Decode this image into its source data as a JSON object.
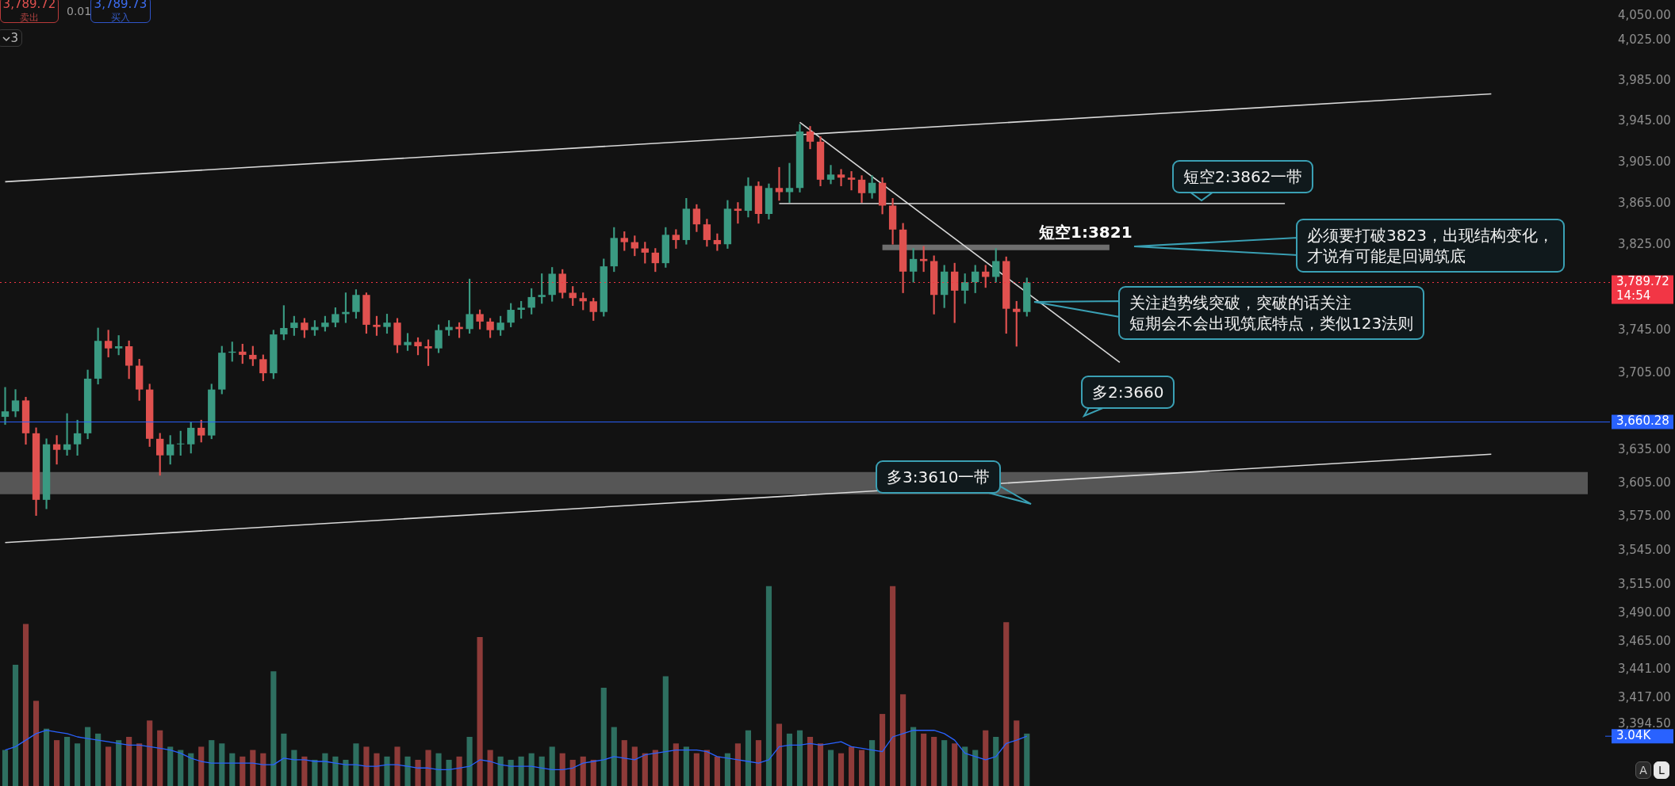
{
  "chart_data": {
    "type": "candlestick",
    "categories": [
      null,
      null,
      null,
      null,
      null,
      null,
      null,
      null,
      null,
      null,
      null,
      null,
      null,
      null,
      null,
      null,
      null,
      null,
      null,
      null,
      null,
      null,
      null,
      null,
      null,
      null,
      null,
      null,
      null,
      null,
      null,
      null,
      null,
      null,
      null,
      null,
      null,
      null,
      null,
      null,
      null,
      null,
      null,
      null,
      null,
      null,
      null,
      null,
      null,
      null,
      null,
      null,
      null,
      null,
      null,
      null,
      null,
      null,
      null,
      null,
      null,
      null,
      null,
      null,
      null,
      null,
      null,
      null,
      null,
      null,
      null,
      null,
      null,
      null,
      null,
      null,
      null,
      null,
      null,
      null,
      null,
      null,
      null,
      null,
      null,
      null,
      null,
      null,
      null,
      null,
      null,
      null,
      null,
      null,
      null,
      null,
      null,
      null,
      null,
      null,
      null,
      null,
      null,
      null,
      null,
      null,
      null,
      null,
      null,
      null,
      null,
      null,
      null,
      null,
      null,
      null,
      null,
      null,
      null,
      null,
      null,
      null,
      null,
      null,
      null,
      null,
      null,
      null,
      null,
      null,
      null,
      null,
      null,
      null,
      null,
      null,
      null,
      null,
      null,
      null,
      null,
      null,
      null,
      null,
      null,
      null,
      null,
      null,
      null,
      null,
      null,
      null,
      null,
      null,
      null,
      null
    ],
    "ohlc": [
      [
        3665,
        3692,
        3658,
        3670
      ],
      [
        3670,
        3690,
        3665,
        3680
      ],
      [
        3680,
        3683,
        3640,
        3650
      ],
      [
        3650,
        3655,
        3576,
        3590
      ],
      [
        3590,
        3645,
        3582,
        3640
      ],
      [
        3640,
        3648,
        3622,
        3635
      ],
      [
        3635,
        3668,
        3630,
        3640
      ],
      [
        3640,
        3662,
        3630,
        3650
      ],
      [
        3650,
        3708,
        3645,
        3700
      ],
      [
        3700,
        3747,
        3695,
        3735
      ],
      [
        3735,
        3745,
        3720,
        3728
      ],
      [
        3728,
        3740,
        3722,
        3730
      ],
      [
        3730,
        3735,
        3700,
        3712
      ],
      [
        3712,
        3718,
        3680,
        3690
      ],
      [
        3690,
        3695,
        3638,
        3645
      ],
      [
        3645,
        3650,
        3612,
        3630
      ],
      [
        3630,
        3648,
        3622,
        3640
      ],
      [
        3640,
        3652,
        3630,
        3640
      ],
      [
        3640,
        3660,
        3632,
        3655
      ],
      [
        3655,
        3662,
        3642,
        3648
      ],
      [
        3648,
        3695,
        3645,
        3690
      ],
      [
        3690,
        3730,
        3686,
        3724
      ],
      [
        3724,
        3734,
        3716,
        3725
      ],
      [
        3725,
        3732,
        3714,
        3722
      ],
      [
        3722,
        3730,
        3712,
        3718
      ],
      [
        3718,
        3722,
        3698,
        3705
      ],
      [
        3705,
        3745,
        3700,
        3741
      ],
      [
        3741,
        3768,
        3736,
        3747
      ],
      [
        3747,
        3758,
        3740,
        3752
      ],
      [
        3752,
        3756,
        3738,
        3745
      ],
      [
        3745,
        3754,
        3740,
        3748
      ],
      [
        3748,
        3758,
        3744,
        3752
      ],
      [
        3752,
        3766,
        3748,
        3760
      ],
      [
        3760,
        3780,
        3752,
        3762
      ],
      [
        3762,
        3783,
        3756,
        3778
      ],
      [
        3778,
        3780,
        3742,
        3750
      ],
      [
        3750,
        3758,
        3740,
        3748
      ],
      [
        3748,
        3760,
        3742,
        3752
      ],
      [
        3752,
        3756,
        3724,
        3731
      ],
      [
        3731,
        3742,
        3726,
        3734
      ],
      [
        3734,
        3738,
        3722,
        3730
      ],
      [
        3730,
        3736,
        3712,
        3728
      ],
      [
        3728,
        3750,
        3724,
        3745
      ],
      [
        3745,
        3754,
        3740,
        3748
      ],
      [
        3748,
        3752,
        3738,
        3746
      ],
      [
        3746,
        3793,
        3742,
        3760
      ],
      [
        3760,
        3764,
        3746,
        3753
      ],
      [
        3753,
        3756,
        3738,
        3745
      ],
      [
        3745,
        3758,
        3740,
        3752
      ],
      [
        3752,
        3770,
        3748,
        3764
      ],
      [
        3764,
        3772,
        3756,
        3766
      ],
      [
        3766,
        3784,
        3760,
        3776
      ],
      [
        3776,
        3798,
        3770,
        3778
      ],
      [
        3778,
        3804,
        3772,
        3798
      ],
      [
        3798,
        3802,
        3775,
        3780
      ],
      [
        3780,
        3786,
        3768,
        3775
      ],
      [
        3775,
        3780,
        3764,
        3772
      ],
      [
        3772,
        3775,
        3754,
        3762
      ],
      [
        3762,
        3812,
        3758,
        3805
      ],
      [
        3805,
        3842,
        3800,
        3832
      ],
      [
        3832,
        3838,
        3820,
        3828
      ],
      [
        3828,
        3834,
        3815,
        3822
      ],
      [
        3822,
        3828,
        3808,
        3818
      ],
      [
        3818,
        3822,
        3800,
        3808
      ],
      [
        3808,
        3842,
        3804,
        3835
      ],
      [
        3835,
        3840,
        3822,
        3830
      ],
      [
        3830,
        3870,
        3826,
        3860
      ],
      [
        3860,
        3864,
        3838,
        3845
      ],
      [
        3845,
        3850,
        3824,
        3830
      ],
      [
        3830,
        3836,
        3820,
        3826
      ],
      [
        3826,
        3868,
        3822,
        3860
      ],
      [
        3860,
        3866,
        3846,
        3858
      ],
      [
        3858,
        3890,
        3852,
        3882
      ],
      [
        3882,
        3886,
        3846,
        3855
      ],
      [
        3855,
        3884,
        3850,
        3880
      ],
      [
        3880,
        3900,
        3868,
        3876
      ],
      [
        3876,
        3904,
        3866,
        3880
      ],
      [
        3880,
        3942,
        3876,
        3935
      ],
      [
        3935,
        3940,
        3918,
        3925
      ],
      [
        3925,
        3930,
        3882,
        3888
      ],
      [
        3888,
        3902,
        3884,
        3893
      ],
      [
        3893,
        3898,
        3882,
        3890
      ],
      [
        3890,
        3896,
        3878,
        3888
      ],
      [
        3888,
        3892,
        3866,
        3875
      ],
      [
        3875,
        3892,
        3870,
        3885
      ],
      [
        3885,
        3890,
        3855,
        3863
      ],
      [
        3863,
        3870,
        3826,
        3840
      ],
      [
        3840,
        3846,
        3780,
        3800
      ],
      [
        3800,
        3822,
        3790,
        3812
      ],
      [
        3812,
        3824,
        3800,
        3810
      ],
      [
        3810,
        3815,
        3760,
        3778
      ],
      [
        3778,
        3806,
        3766,
        3800
      ],
      [
        3800,
        3808,
        3752,
        3782
      ],
      [
        3782,
        3798,
        3770,
        3790
      ],
      [
        3790,
        3806,
        3780,
        3800
      ],
      [
        3800,
        3806,
        3785,
        3795
      ],
      [
        3795,
        3822,
        3790,
        3810
      ],
      [
        3810,
        3814,
        3742,
        3765
      ],
      [
        3765,
        3772,
        3730,
        3762
      ],
      [
        3762,
        3794,
        3758,
        3789.72
      ],
      null,
      null,
      null,
      null,
      null,
      null,
      null,
      null,
      null,
      null,
      null,
      null,
      null,
      null,
      null,
      null,
      null,
      null,
      null,
      null,
      null,
      null,
      null,
      null,
      null,
      null,
      null,
      null,
      null,
      null,
      null,
      null,
      null,
      null,
      null,
      null,
      null,
      null,
      null,
      null,
      null,
      null,
      null,
      null,
      null,
      null,
      null,
      null,
      null,
      null,
      null,
      null,
      null,
      null,
      null,
      null
    ],
    "colors": [
      "#3a9a82",
      "#3a9a82",
      "#e0514f",
      "#e0514f",
      "#3a9a82",
      "#e0514f",
      "#3a9a82",
      "#3a9a82",
      "#3a9a82",
      "#3a9a82",
      "#e0514f",
      "#3a9a82",
      "#e0514f",
      "#e0514f",
      "#e0514f",
      "#e0514f",
      "#3a9a82",
      "#3a9a82",
      "#3a9a82",
      "#e0514f",
      "#3a9a82",
      "#3a9a82",
      "#3a9a82",
      "#e0514f",
      "#e0514f",
      "#e0514f",
      "#3a9a82",
      "#3a9a82",
      "#3a9a82",
      "#e0514f",
      "#3a9a82",
      "#3a9a82",
      "#3a9a82",
      "#3a9a82",
      "#3a9a82",
      "#e0514f",
      "#e0514f",
      "#3a9a82",
      "#e0514f",
      "#3a9a82",
      "#e0514f",
      "#e0514f",
      "#3a9a82",
      "#3a9a82",
      "#e0514f",
      "#3a9a82",
      "#e0514f",
      "#e0514f",
      "#3a9a82",
      "#3a9a82",
      "#3a9a82",
      "#3a9a82",
      "#3a9a82",
      "#3a9a82",
      "#e0514f",
      "#e0514f",
      "#e0514f",
      "#e0514f",
      "#3a9a82",
      "#3a9a82",
      "#e0514f",
      "#e0514f",
      "#e0514f",
      "#e0514f",
      "#3a9a82",
      "#e0514f",
      "#3a9a82",
      "#e0514f",
      "#e0514f",
      "#e0514f",
      "#3a9a82",
      "#e0514f",
      "#3a9a82",
      "#e0514f",
      "#3a9a82",
      "#e0514f",
      "#3a9a82",
      "#3a9a82",
      "#e0514f",
      "#e0514f",
      "#3a9a82",
      "#e0514f",
      "#e0514f",
      "#e0514f",
      "#3a9a82",
      "#e0514f",
      "#e0514f",
      "#e0514f",
      "#3a9a82",
      "#e0514f",
      "#e0514f",
      "#3a9a82",
      "#e0514f",
      "#3a9a82",
      "#3a9a82",
      "#e0514f",
      "#3a9a82",
      "#e0514f",
      "#e0514f",
      "#3a9a82",
      null,
      null,
      null,
      null,
      null,
      null,
      null,
      null,
      null,
      null,
      null,
      null,
      null,
      null,
      null,
      null,
      null,
      null,
      null,
      null,
      null,
      null,
      null,
      null,
      null,
      null,
      null,
      null,
      null,
      null,
      null,
      null,
      null,
      null,
      null,
      null,
      null,
      null,
      null,
      null,
      null,
      null,
      null,
      null,
      null,
      null,
      null,
      null,
      null,
      null,
      null,
      null,
      null,
      null,
      null,
      null
    ],
    "series": [
      {
        "type": "bar",
        "axis": "y2",
        "colors": [
          "#2e6f60",
          "#2e6f60",
          "#8e3b39",
          "#8e3b39",
          "#2e6f60",
          "#8e3b39",
          "#2e6f60",
          "#2e6f60",
          "#2e6f60",
          "#2e6f60",
          "#8e3b39",
          "#2e6f60",
          "#8e3b39",
          "#8e3b39",
          "#8e3b39",
          "#8e3b39",
          "#2e6f60",
          "#2e6f60",
          "#2e6f60",
          "#8e3b39",
          "#2e6f60",
          "#2e6f60",
          "#2e6f60",
          "#8e3b39",
          "#8e3b39",
          "#8e3b39",
          "#2e6f60",
          "#2e6f60",
          "#2e6f60",
          "#8e3b39",
          "#2e6f60",
          "#2e6f60",
          "#2e6f60",
          "#2e6f60",
          "#2e6f60",
          "#8e3b39",
          "#8e3b39",
          "#2e6f60",
          "#8e3b39",
          "#2e6f60",
          "#8e3b39",
          "#8e3b39",
          "#2e6f60",
          "#2e6f60",
          "#8e3b39",
          "#2e6f60",
          "#8e3b39",
          "#8e3b39",
          "#2e6f60",
          "#2e6f60",
          "#2e6f60",
          "#2e6f60",
          "#2e6f60",
          "#2e6f60",
          "#8e3b39",
          "#8e3b39",
          "#8e3b39",
          "#8e3b39",
          "#2e6f60",
          "#2e6f60",
          "#8e3b39",
          "#8e3b39",
          "#8e3b39",
          "#8e3b39",
          "#2e6f60",
          "#8e3b39",
          "#2e6f60",
          "#8e3b39",
          "#8e3b39",
          "#8e3b39",
          "#2e6f60",
          "#8e3b39",
          "#2e6f60",
          "#8e3b39",
          "#2e6f60",
          "#8e3b39",
          "#2e6f60",
          "#2e6f60",
          "#8e3b39",
          "#8e3b39",
          "#2e6f60",
          "#8e3b39",
          "#8e3b39",
          "#8e3b39",
          "#2e6f60",
          "#8e3b39",
          "#8e3b39",
          "#8e3b39",
          "#2e6f60",
          "#8e3b39",
          "#8e3b39",
          "#2e6f60",
          "#8e3b39",
          "#2e6f60",
          "#2e6f60",
          "#8e3b39",
          "#2e6f60",
          "#8e3b39",
          "#8e3b39",
          "#2e6f60",
          null,
          null,
          null,
          null,
          null,
          null,
          null,
          null,
          null,
          null,
          null,
          null,
          null,
          null,
          null,
          null,
          null,
          null,
          null,
          null,
          null,
          null,
          null,
          null,
          null,
          null,
          null,
          null,
          null,
          null,
          null,
          null,
          null,
          null,
          null,
          null,
          null,
          null,
          null,
          null,
          null,
          null,
          null,
          null,
          null,
          null,
          null,
          null,
          null,
          null,
          null,
          null,
          null,
          null,
          null,
          null
        ],
        "values": [
          2.2,
          7.4,
          9.9,
          5.2,
          3.5,
          2.8,
          3.0,
          2.6,
          3.6,
          3.2,
          2.4,
          2.8,
          3.0,
          2.6,
          4.0,
          3.4,
          2.4,
          2.2,
          2.0,
          2.4,
          2.8,
          2.6,
          2.0,
          1.8,
          2.2,
          2.0,
          7.0,
          3.2,
          2.2,
          1.8,
          1.6,
          2.0,
          1.8,
          1.6,
          2.6,
          2.4,
          2.0,
          1.8,
          2.4,
          1.8,
          1.6,
          2.2,
          2.0,
          1.6,
          1.8,
          3.0,
          9.1,
          2.2,
          1.8,
          1.6,
          1.8,
          2.0,
          1.8,
          2.4,
          2.0,
          1.6,
          1.8,
          1.6,
          6.0,
          3.6,
          2.8,
          2.4,
          2.0,
          2.2,
          6.7,
          2.6,
          2.4,
          2.0,
          2.2,
          1.8,
          2.0,
          2.6,
          3.4,
          2.8,
          12.2,
          3.8,
          3.2,
          3.4,
          3.0,
          2.6,
          2.2,
          2.0,
          2.4,
          2.2,
          2.8,
          4.4,
          12.2,
          5.6,
          3.6,
          3.2,
          3.0,
          2.8,
          2.6,
          2.4,
          2.2,
          3.4,
          3.0,
          10.0,
          4.0,
          3.2,
          null,
          null,
          null,
          null,
          null,
          null,
          null,
          null,
          null,
          null,
          null,
          null,
          null,
          null,
          null,
          null,
          null,
          null,
          null,
          null,
          null,
          null,
          null,
          null,
          null,
          null,
          null,
          null,
          null,
          null,
          null,
          null,
          null,
          null,
          null,
          null,
          null,
          null,
          null,
          null,
          null,
          null,
          null,
          null,
          null,
          null,
          null,
          null,
          null,
          null,
          null,
          null,
          null,
          null,
          null,
          null
        ]
      },
      {
        "type": "line",
        "axis": "y2",
        "color": "#2962ff",
        "values": [
          2.2,
          2.4,
          2.8,
          3.2,
          3.4,
          3.3,
          3.2,
          3.0,
          2.9,
          2.8,
          2.7,
          2.6,
          2.5,
          2.5,
          2.4,
          2.3,
          2.2,
          2.0,
          1.7,
          1.5,
          1.4,
          1.4,
          1.4,
          1.4,
          1.4,
          1.3,
          1.3,
          1.7,
          1.6,
          1.6,
          1.5,
          1.5,
          1.4,
          1.3,
          1.3,
          1.2,
          1.2,
          1.3,
          1.3,
          1.2,
          1.1,
          1.1,
          1.0,
          1.0,
          1.1,
          1.2,
          1.6,
          1.5,
          1.3,
          1.2,
          1.2,
          1.2,
          1.1,
          1.0,
          1.0,
          1.1,
          1.4,
          1.5,
          1.6,
          1.8,
          1.7,
          1.6,
          1.9,
          2.0,
          2.1,
          2.2,
          2.2,
          2.2,
          2.1,
          1.8,
          1.7,
          1.6,
          1.5,
          1.4,
          1.6,
          2.4,
          2.5,
          2.5,
          2.6,
          2.5,
          2.6,
          2.7,
          2.4,
          2.3,
          2.2,
          2.1,
          3.0,
          3.2,
          3.4,
          3.4,
          3.4,
          3.2,
          2.8,
          2.0,
          1.8,
          1.6,
          1.8,
          2.6,
          2.8,
          3.04,
          null,
          null,
          null,
          null,
          null,
          null,
          null,
          null,
          null,
          null,
          null,
          null,
          null,
          null,
          null,
          null,
          null,
          null,
          null,
          null,
          null,
          null,
          null,
          null,
          null,
          null,
          null,
          null,
          null,
          null,
          null,
          null,
          null,
          null,
          null,
          null,
          null,
          null,
          null,
          null,
          null,
          null,
          null,
          null,
          null,
          null,
          null,
          null,
          null,
          null,
          null,
          null,
          null,
          null,
          null,
          null
        ]
      },
      {
        "type": "line",
        "color": "#d9d9d9",
        "values": [
          3886,
          null,
          null,
          null,
          null,
          null,
          null,
          null,
          null,
          null,
          null,
          null,
          null,
          null,
          null,
          null,
          null,
          null,
          null,
          null,
          null,
          null,
          null,
          null,
          null,
          null,
          null,
          null,
          null,
          null,
          null,
          null,
          null,
          null,
          null,
          null,
          null,
          null,
          null,
          null,
          null,
          null,
          null,
          null,
          null,
          null,
          null,
          null,
          null,
          null,
          null,
          null,
          null,
          null,
          null,
          null,
          null,
          null,
          null,
          null,
          null,
          null,
          null,
          null,
          null,
          null,
          null,
          null,
          null,
          null,
          null,
          null,
          null,
          null,
          null,
          null,
          null,
          null,
          null,
          null,
          null,
          null,
          null,
          null,
          null,
          null,
          null,
          null,
          null,
          null,
          null,
          null,
          null,
          null,
          null,
          null,
          null,
          null,
          null,
          null,
          null,
          null,
          null,
          null,
          null,
          null,
          null,
          null,
          null,
          null,
          null,
          null,
          null,
          null,
          null,
          null,
          null,
          null,
          null,
          null,
          null,
          null,
          null,
          null,
          null,
          null,
          null,
          null,
          null,
          null,
          null,
          null,
          null,
          null,
          null,
          null,
          null,
          null,
          null,
          null,
          null,
          null,
          null,
          null,
          3972,
          null,
          null,
          null,
          null,
          null,
          null,
          null,
          null,
          null,
          null,
          null
        ]
      },
      {
        "type": "line",
        "color": "#d9d9d9",
        "values": [
          3552,
          null,
          null,
          null,
          null,
          null,
          null,
          null,
          null,
          null,
          null,
          null,
          null,
          null,
          null,
          null,
          null,
          null,
          null,
          null,
          null,
          null,
          null,
          null,
          null,
          null,
          null,
          null,
          null,
          null,
          null,
          null,
          null,
          null,
          null,
          null,
          null,
          null,
          null,
          null,
          null,
          null,
          null,
          null,
          null,
          null,
          null,
          null,
          null,
          null,
          null,
          null,
          null,
          null,
          null,
          null,
          null,
          null,
          null,
          null,
          null,
          null,
          null,
          null,
          null,
          null,
          null,
          null,
          null,
          null,
          null,
          null,
          null,
          null,
          null,
          null,
          null,
          null,
          null,
          null,
          null,
          null,
          null,
          null,
          null,
          null,
          null,
          null,
          null,
          null,
          null,
          null,
          null,
          null,
          null,
          null,
          null,
          null,
          null,
          null,
          null,
          null,
          null,
          null,
          null,
          null,
          null,
          null,
          null,
          null,
          null,
          null,
          null,
          null,
          null,
          null,
          null,
          null,
          null,
          null,
          null,
          null,
          null,
          null,
          null,
          null,
          null,
          null,
          null,
          null,
          null,
          null,
          null,
          null,
          null,
          null,
          null,
          null,
          null,
          null,
          null,
          null,
          null,
          null,
          3631,
          null,
          null,
          null,
          null,
          null,
          null,
          null,
          null,
          null,
          null,
          null
        ]
      },
      {
        "type": "line",
        "color": "#d9d9d9",
        "values": [
          null,
          null,
          null,
          null,
          null,
          null,
          null,
          null,
          null,
          null,
          null,
          null,
          null,
          null,
          null,
          null,
          null,
          null,
          null,
          null,
          null,
          null,
          null,
          null,
          null,
          null,
          null,
          null,
          null,
          null,
          null,
          null,
          null,
          null,
          null,
          null,
          null,
          null,
          null,
          null,
          null,
          null,
          null,
          null,
          null,
          null,
          null,
          null,
          null,
          null,
          null,
          null,
          null,
          null,
          null,
          null,
          null,
          null,
          null,
          null,
          null,
          null,
          null,
          null,
          null,
          null,
          null,
          null,
          null,
          null,
          null,
          null,
          null,
          null,
          null,
          null,
          null,
          3944,
          null,
          null,
          null,
          null,
          null,
          null,
          null,
          null,
          null,
          null,
          null,
          null,
          null,
          null,
          null,
          null,
          null,
          null,
          null,
          null,
          null,
          null,
          null,
          null,
          null,
          null,
          null,
          null,
          null,
          null,
          3715,
          null,
          null,
          null,
          null,
          null,
          null,
          null,
          null,
          null,
          null,
          null,
          null,
          null,
          null,
          null,
          null,
          null,
          null,
          null,
          null,
          null,
          null,
          null,
          null,
          null,
          null,
          null,
          null,
          null,
          null,
          null,
          null,
          null,
          null,
          null,
          null,
          null,
          null,
          null,
          null,
          null,
          null,
          null,
          null,
          null,
          null,
          null
        ]
      },
      {
        "type": "line",
        "color": "#bdbdbd",
        "values": [
          null,
          null,
          null,
          null,
          null,
          null,
          null,
          null,
          null,
          null,
          null,
          null,
          null,
          null,
          null,
          null,
          null,
          null,
          null,
          null,
          null,
          null,
          null,
          null,
          null,
          null,
          null,
          null,
          null,
          null,
          null,
          null,
          null,
          null,
          null,
          null,
          null,
          null,
          null,
          null,
          null,
          null,
          null,
          null,
          null,
          null,
          null,
          null,
          null,
          null,
          null,
          null,
          null,
          null,
          null,
          null,
          null,
          null,
          null,
          null,
          null,
          null,
          null,
          null,
          null,
          null,
          null,
          null,
          null,
          null,
          null,
          null,
          null,
          null,
          null,
          3865,
          null,
          null,
          null,
          null,
          null,
          null,
          null,
          null,
          null,
          null,
          null,
          null,
          null,
          null,
          null,
          null,
          null,
          null,
          null,
          null,
          null,
          null,
          null,
          null,
          null,
          null,
          null,
          null,
          null,
          null,
          null,
          null,
          null,
          null,
          null,
          null,
          null,
          null,
          null,
          null,
          null,
          null,
          null,
          null,
          null,
          null,
          null,
          null,
          3865,
          null,
          null,
          null,
          null,
          null,
          null,
          null,
          null,
          null,
          null,
          null,
          null,
          null,
          null,
          null,
          null,
          null,
          null,
          null,
          null,
          null,
          null,
          null,
          null,
          null,
          null,
          null,
          null,
          null,
          null,
          null
        ]
      },
      {
        "type": "line",
        "color": "#6e6e6e",
        "values": [
          null,
          null,
          null,
          null,
          null,
          null,
          null,
          null,
          null,
          null,
          null,
          null,
          null,
          null,
          null,
          null,
          null,
          null,
          null,
          null,
          null,
          null,
          null,
          null,
          null,
          null,
          null,
          null,
          null,
          null,
          null,
          null,
          null,
          null,
          null,
          null,
          null,
          null,
          null,
          null,
          null,
          null,
          null,
          null,
          null,
          null,
          null,
          null,
          null,
          null,
          null,
          null,
          null,
          null,
          null,
          null,
          null,
          null,
          null,
          null,
          null,
          null,
          null,
          null,
          null,
          null,
          null,
          null,
          null,
          null,
          null,
          null,
          null,
          null,
          null,
          null,
          null,
          null,
          null,
          null,
          null,
          null,
          null,
          null,
          null,
          3823,
          null,
          null,
          null,
          null,
          null,
          null,
          null,
          null,
          null,
          null,
          null,
          null,
          null,
          null,
          null,
          null,
          null,
          null,
          null,
          null,
          null,
          3823,
          null,
          null,
          null,
          null,
          null,
          null,
          null,
          null,
          null,
          null,
          null,
          null,
          null,
          null,
          null,
          null,
          null,
          null,
          null,
          null,
          null,
          null,
          null,
          null,
          null,
          null,
          null,
          null,
          null,
          null,
          null,
          null,
          null,
          null,
          null,
          null,
          null,
          null,
          null,
          null,
          null,
          null,
          null,
          null,
          null,
          null,
          null,
          null
        ]
      }
    ],
    "log": "y",
    "ylim": [
      3343,
      4066
    ],
    "yticks": [
      {
        "value": 4050,
        "label": "4,050.00"
      },
      {
        "value": 4025,
        "label": "4,025.00"
      },
      {
        "value": 3985,
        "label": "3,985.00"
      },
      {
        "value": 3945,
        "label": "3,945.00"
      },
      {
        "value": 3905,
        "label": "3,905.00"
      },
      {
        "value": 3865,
        "label": "3,865.00"
      },
      {
        "value": 3825,
        "label": "3,825.00"
      },
      {
        "value": 3745,
        "label": "3,745.00"
      },
      {
        "value": 3705,
        "label": "3,705.00"
      },
      {
        "value": 3635,
        "label": "3,635.00"
      },
      {
        "value": 3605,
        "label": "3,605.00"
      },
      {
        "value": 3575,
        "label": "3,575.00"
      },
      {
        "value": 3545,
        "label": "3,545.00"
      },
      {
        "value": 3515,
        "label": "3,515.00"
      },
      {
        "value": 3490,
        "label": "3,490.00"
      },
      {
        "value": 3465,
        "label": "3,465.00"
      },
      {
        "value": 3441,
        "label": "3,441.00"
      },
      {
        "value": 3417,
        "label": "3,417.00"
      },
      {
        "value": 3394.5,
        "label": "3,394.50"
      }
    ],
    "y2lim": [
      0,
      48
    ],
    "y2ticks": [
      {
        "value": 3.04,
        "label": "3.04K"
      }
    ],
    "tick_labels": "y",
    "ref_lines": [
      {
        "axis": "y",
        "value": 3789.72,
        "label": "3,789.72\n14:54",
        "color": "#f23645",
        "line_style": "dotted"
      },
      {
        "axis": "y",
        "value": 3660.28,
        "label": "3,660.28",
        "color": "#2962ff",
        "line_style": "solid"
      }
    ],
    "bands": [
      {
        "axis": "y",
        "from": 3595,
        "to": 3615,
        "color": "#565656"
      }
    ],
    "annotations": [
      "短空2:3862一带",
      "短空1:3821",
      "必须要打破3823，出现结构变化，才说有可能是回调筑底",
      "关注趋势线突破，突破的话关注短期会不会出现筑底特点，类似123法则",
      "多2:3660",
      "多3:3610一带",
      "3,789.72",
      "卖出",
      "0.01",
      "3,789.73",
      "买入",
      "3",
      "A",
      "L"
    ]
  }
}
